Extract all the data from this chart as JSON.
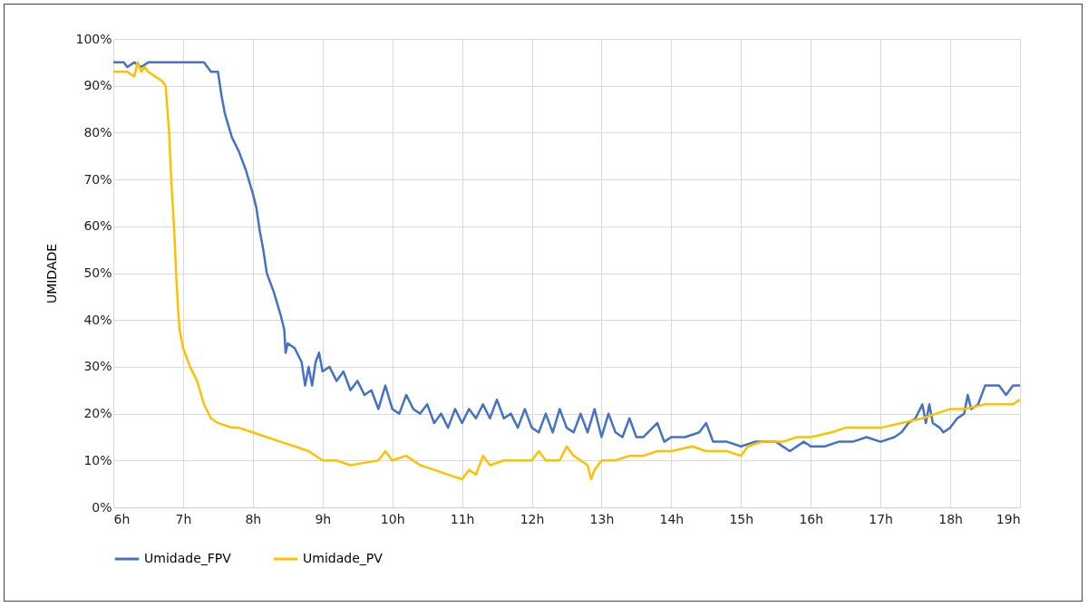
{
  "chart_data": {
    "type": "line",
    "ylabel": "UMIDADE",
    "xlim": [
      6,
      19
    ],
    "ylim": [
      0,
      100
    ],
    "xticks": [
      {
        "value": 6,
        "label": "6h"
      },
      {
        "value": 7,
        "label": "7h"
      },
      {
        "value": 8,
        "label": "8h"
      },
      {
        "value": 9,
        "label": "9h"
      },
      {
        "value": 10,
        "label": "10h"
      },
      {
        "value": 11,
        "label": "11h"
      },
      {
        "value": 12,
        "label": "12h"
      },
      {
        "value": 13,
        "label": "13h"
      },
      {
        "value": 14,
        "label": "14h"
      },
      {
        "value": 15,
        "label": "15h"
      },
      {
        "value": 16,
        "label": "16h"
      },
      {
        "value": 17,
        "label": "17h"
      },
      {
        "value": 18,
        "label": "18h"
      },
      {
        "value": 19,
        "label": "19h"
      }
    ],
    "yticks": [
      {
        "value": 0,
        "label": "0%"
      },
      {
        "value": 10,
        "label": "10%"
      },
      {
        "value": 20,
        "label": "20%"
      },
      {
        "value": 30,
        "label": "30%"
      },
      {
        "value": 40,
        "label": "40%"
      },
      {
        "value": 50,
        "label": "50%"
      },
      {
        "value": 60,
        "label": "60%"
      },
      {
        "value": 70,
        "label": "70%"
      },
      {
        "value": 80,
        "label": "80%"
      },
      {
        "value": 90,
        "label": "90%"
      },
      {
        "value": 100,
        "label": "100%"
      }
    ],
    "grid": true,
    "legend": "bottom",
    "marker": "none",
    "line_style": "solid",
    "series": [
      {
        "name": "Umidade_FPV",
        "color": "#4472c4",
        "x": [
          6.0,
          6.15,
          6.2,
          6.3,
          6.4,
          6.5,
          7.0,
          7.3,
          7.4,
          7.5,
          7.55,
          7.6,
          7.7,
          7.8,
          7.9,
          8.0,
          8.05,
          8.1,
          8.15,
          8.2,
          8.3,
          8.4,
          8.45,
          8.47,
          8.5,
          8.6,
          8.7,
          8.75,
          8.8,
          8.85,
          8.9,
          8.95,
          9.0,
          9.1,
          9.2,
          9.3,
          9.4,
          9.5,
          9.6,
          9.7,
          9.8,
          9.9,
          10.0,
          10.1,
          10.2,
          10.3,
          10.4,
          10.5,
          10.6,
          10.7,
          10.8,
          10.9,
          11.0,
          11.1,
          11.2,
          11.3,
          11.4,
          11.5,
          11.6,
          11.7,
          11.8,
          11.9,
          12.0,
          12.1,
          12.2,
          12.3,
          12.4,
          12.5,
          12.6,
          12.7,
          12.8,
          12.9,
          13.0,
          13.1,
          13.2,
          13.3,
          13.4,
          13.5,
          13.6,
          13.8,
          13.9,
          14.0,
          14.2,
          14.4,
          14.5,
          14.6,
          14.8,
          15.0,
          15.2,
          15.5,
          15.7,
          15.9,
          16.0,
          16.2,
          16.4,
          16.6,
          16.8,
          17.0,
          17.2,
          17.3,
          17.4,
          17.5,
          17.6,
          17.65,
          17.7,
          17.75,
          17.85,
          17.9,
          18.0,
          18.1,
          18.2,
          18.25,
          18.3,
          18.4,
          18.5,
          18.7,
          18.8,
          18.9,
          19.0
        ],
        "values": [
          95,
          95,
          94,
          95,
          94,
          95,
          95,
          95,
          93,
          93,
          88,
          84,
          79,
          76,
          72,
          67,
          64,
          59,
          55,
          50,
          46,
          41,
          38,
          33,
          35,
          34,
          31,
          26,
          30,
          26,
          31,
          33,
          29,
          30,
          27,
          29,
          25,
          27,
          24,
          25,
          21,
          26,
          21,
          20,
          24,
          21,
          20,
          22,
          18,
          20,
          17,
          21,
          18,
          21,
          19,
          22,
          19,
          23,
          19,
          20,
          17,
          21,
          17,
          16,
          20,
          16,
          21,
          17,
          16,
          20,
          16,
          21,
          15,
          20,
          16,
          15,
          19,
          15,
          15,
          18,
          14,
          15,
          15,
          16,
          18,
          14,
          14,
          13,
          14,
          14,
          12,
          14,
          13,
          13,
          14,
          14,
          15,
          14,
          15,
          16,
          18,
          19,
          22,
          18,
          22,
          18,
          17,
          16,
          17,
          19,
          20,
          24,
          21,
          22,
          26,
          26,
          24,
          26,
          26
        ]
      },
      {
        "name": "Umidade_PV",
        "color": "#ffc000",
        "x": [
          6.0,
          6.2,
          6.3,
          6.35,
          6.4,
          6.45,
          6.5,
          6.6,
          6.7,
          6.75,
          6.8,
          6.83,
          6.87,
          6.9,
          6.93,
          6.95,
          7.0,
          7.05,
          7.1,
          7.2,
          7.3,
          7.4,
          7.5,
          7.7,
          7.8,
          8.0,
          8.2,
          8.4,
          8.6,
          8.8,
          9.0,
          9.2,
          9.4,
          9.6,
          9.8,
          9.9,
          10.0,
          10.2,
          10.4,
          10.6,
          10.8,
          11.0,
          11.1,
          11.2,
          11.3,
          11.4,
          11.6,
          11.8,
          12.0,
          12.1,
          12.2,
          12.4,
          12.5,
          12.6,
          12.8,
          12.85,
          12.9,
          13.0,
          13.2,
          13.4,
          13.6,
          13.8,
          14.0,
          14.3,
          14.5,
          14.8,
          15.0,
          15.1,
          15.3,
          15.6,
          15.8,
          16.0,
          16.3,
          16.5,
          16.8,
          17.0,
          17.3,
          17.6,
          17.8,
          18.0,
          18.2,
          18.5,
          18.9,
          19.0
        ],
        "values": [
          93,
          93,
          92,
          95,
          93,
          94,
          93,
          92,
          91,
          90,
          80,
          70,
          60,
          50,
          42,
          38,
          34,
          32,
          30,
          27,
          22,
          19,
          18,
          17,
          17,
          16,
          15,
          14,
          13,
          12,
          10,
          10,
          9,
          9.5,
          10,
          12,
          10,
          11,
          9,
          8,
          7,
          6,
          8,
          7,
          11,
          9,
          10,
          10,
          10,
          12,
          10,
          10,
          13,
          11,
          9,
          6,
          8,
          10,
          10,
          11,
          11,
          12,
          12,
          13,
          12,
          12,
          11,
          13,
          14,
          14,
          15,
          15,
          16,
          17,
          17,
          17,
          18,
          19,
          20,
          21,
          21,
          22,
          22,
          23
        ]
      }
    ]
  }
}
